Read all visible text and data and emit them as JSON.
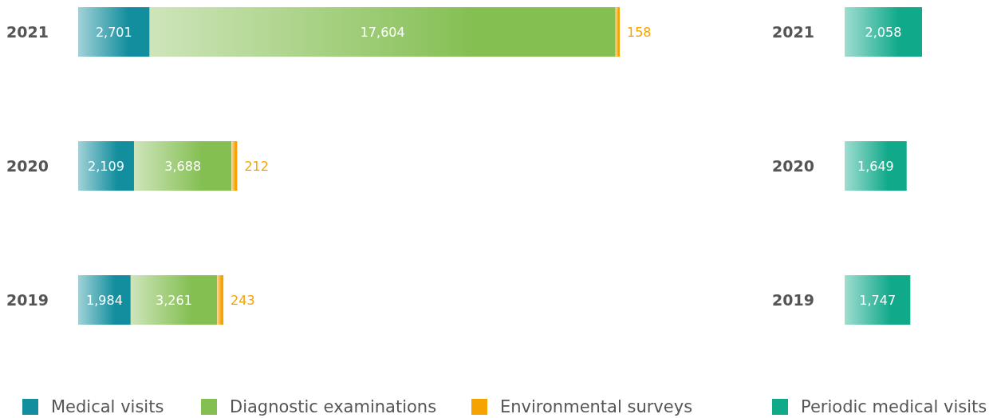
{
  "chart_data": [
    {
      "type": "bar",
      "orientation": "horizontal",
      "stacked": true,
      "categories": [
        "2021",
        "2020",
        "2019"
      ],
      "legend": "bottom",
      "series": [
        {
          "name": "Medical visits",
          "color": "#138e9e",
          "values": [
            2701,
            2109,
            1984
          ],
          "value_labels": [
            "2,701",
            "2,109",
            "1,984"
          ]
        },
        {
          "name": "Diagnostic examinations",
          "color": "#84bf52",
          "values": [
            17604,
            3688,
            3261
          ],
          "value_labels": [
            "17,604",
            "3,688",
            "3,261"
          ]
        },
        {
          "name": "Environmental surveys",
          "color": "#f5a300",
          "values": [
            158,
            212,
            243
          ],
          "value_labels": [
            "158",
            "212",
            "243"
          ]
        }
      ]
    },
    {
      "type": "bar",
      "orientation": "horizontal",
      "categories": [
        "2021",
        "2020",
        "2019"
      ],
      "legend": "bottom",
      "series": [
        {
          "name": "Periodic medical visits",
          "color": "#10a98a",
          "values": [
            2058,
            1649,
            1747
          ],
          "value_labels": [
            "2,058",
            "1,649",
            "1,747"
          ]
        }
      ]
    }
  ]
}
